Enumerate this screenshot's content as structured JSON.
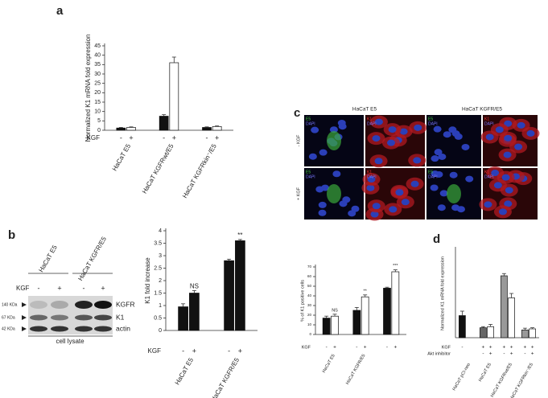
{
  "panels": [
    "a",
    "b",
    "c",
    "d"
  ],
  "blot": {
    "groups": [
      "HaCaT E5",
      "HaCaT KGFR/E5"
    ],
    "treatment": "KGF",
    "lanes": [
      "-",
      "+",
      "-",
      "+"
    ],
    "bands": [
      "KGFR",
      "K1",
      "actin"
    ],
    "markers": [
      "140 KDa",
      "67 KDa",
      "42 KDa"
    ],
    "caption": "cell lysate"
  },
  "micrographs": {
    "columns": [
      "HaCaT E5",
      "HaCaT KGFR/E5"
    ],
    "rows": [
      "- KGF",
      "+ KGF"
    ],
    "channels": [
      [
        "E5",
        "DAPI"
      ],
      [
        "K1",
        "DAPI"
      ]
    ]
  },
  "chart_data": [
    {
      "type": "bar",
      "ylabel": "Normalized K1 mRNA fold expression",
      "categories": [
        "HaCaT E5",
        "HaCaT KGFRwt/E5",
        "HaCaT KGFRkin⁻/E5"
      ],
      "series": [
        {
          "color": "#111111",
          "values": [
            1.2,
            7.5,
            1.5
          ],
          "errors": [
            0.3,
            0.8,
            0.3
          ]
        },
        {
          "color": "#ffffff",
          "values": [
            1.5,
            36,
            2
          ],
          "errors": [
            0.3,
            3,
            0.3
          ]
        }
      ],
      "rows": [
        {
          "label": "KGF",
          "marks": [
            [
              "-",
              "+"
            ],
            [
              "-",
              "+"
            ],
            [
              "-",
              "+"
            ]
          ]
        }
      ],
      "ylim": [
        0,
        45
      ],
      "yticks": [
        0,
        5,
        10,
        15,
        20,
        25,
        30,
        35,
        40,
        45
      ]
    },
    {
      "type": "bar",
      "ylabel": "K1 fold increase",
      "categories": [
        "HaCaT E5",
        "HaCaT KGFR/E5"
      ],
      "series": [
        {
          "color": "#111111",
          "values": [
            0.95,
            2.8
          ],
          "errors": [
            0.12,
            0.06
          ]
        },
        {
          "color": "#111111",
          "values": [
            1.5,
            3.6
          ],
          "errors": [
            0.1,
            0.05
          ],
          "annotations": [
            "NS",
            "**"
          ]
        }
      ],
      "rows": [
        {
          "label": "KGF",
          "marks": [
            [
              "-",
              "+"
            ],
            [
              "-",
              "+"
            ]
          ]
        }
      ],
      "ylim": [
        0,
        4
      ],
      "yticks": [
        0,
        0.5,
        1,
        1.5,
        2,
        2.5,
        3,
        3.5,
        4
      ]
    },
    {
      "type": "bar",
      "ylabel": "% of K1 positive cells",
      "categories": [
        "HaCaT E5",
        "HaCaT KGFR/E5",
        null
      ],
      "series": [
        {
          "color": "#111111",
          "values": [
            17,
            25,
            48
          ],
          "errors": [
            2,
            3,
            1
          ]
        },
        {
          "color": "#ffffff",
          "values": [
            19,
            39,
            65
          ],
          "errors": [
            2,
            2,
            2
          ],
          "annotations": [
            "NS",
            "**",
            "***"
          ]
        }
      ],
      "rows": [
        {
          "label": "KGF",
          "marks": [
            [
              "-",
              "+"
            ],
            [
              "-",
              "+"
            ],
            [
              "-",
              "+"
            ]
          ]
        }
      ],
      "ylim": [
        0,
        70
      ],
      "yticks": [
        0,
        10,
        20,
        30,
        40,
        50,
        60,
        70
      ]
    },
    {
      "type": "bar",
      "ylabel": "Normalized K1 mRNA fold expression",
      "categories": [
        "HaCaT pCI-neo",
        "HaCaT E5",
        "HaCaT KGFRwt/E5",
        "HaCaT KGFRkin⁻/E5"
      ],
      "series": [
        {
          "colors": [
            "#111111",
            "#666666",
            "#999999",
            "#999999"
          ],
          "values": [
            1.0,
            0.45,
            2.8,
            0.35
          ],
          "errors": [
            0.2,
            0.05,
            0.1,
            0.08
          ]
        },
        {
          "color": "#ffffff",
          "values": [
            null,
            0.5,
            1.8,
            0.4
          ],
          "errors": [
            null,
            0.1,
            0.2,
            0.05
          ]
        }
      ],
      "rows": [
        {
          "label": "KGF",
          "marks": [
            [
              "-",
              null
            ],
            [
              "+",
              "+"
            ],
            [
              "+",
              "+"
            ],
            [
              "+",
              "+"
            ]
          ]
        },
        {
          "label": "Akt inhibitor",
          "marks": [
            [
              null,
              null
            ],
            [
              "-",
              "+"
            ],
            [
              "-",
              "+"
            ],
            [
              "-",
              "+"
            ]
          ]
        }
      ],
      "ylim": [
        0,
        4
      ]
    }
  ]
}
